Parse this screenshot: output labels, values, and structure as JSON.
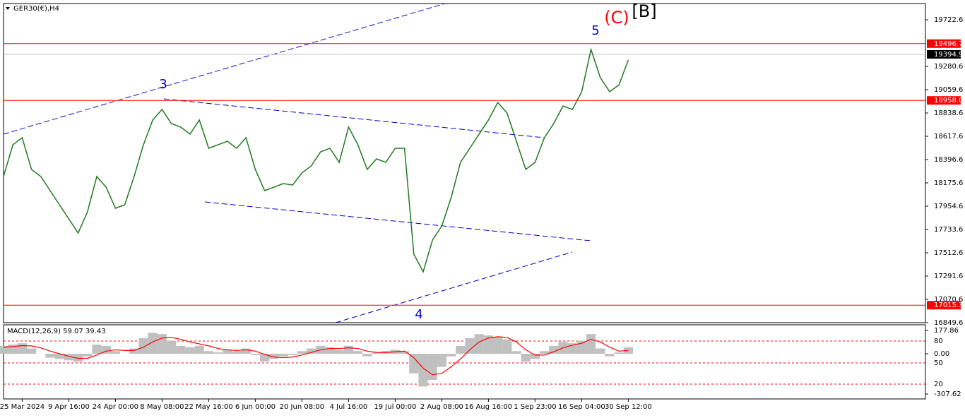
{
  "chart_data": [
    {
      "type": "line",
      "title": "GER30(€),H4",
      "color": "#1e7a1e",
      "categories": [
        null,
        null,
        "25 Mar 2024",
        null,
        null,
        null,
        null,
        "9 Apr 16:00",
        null,
        null,
        null,
        null,
        "24 Apr 00:00",
        null,
        null,
        null,
        null,
        "8 May 08:00",
        null,
        null,
        null,
        null,
        "22 May 16:00",
        null,
        null,
        null,
        null,
        "6 Jun 00:00",
        null,
        null,
        null,
        null,
        "20 Jun 08:00",
        null,
        null,
        null,
        null,
        "4 Jul 16:00",
        null,
        null,
        null,
        null,
        "19 Jul 00:00",
        null,
        null,
        null,
        null,
        "2 Aug 08:00",
        null,
        null,
        null,
        null,
        "16 Aug 16:00",
        null,
        null,
        null,
        null,
        "1 Sep 23:00",
        null,
        null,
        null,
        null,
        "16 Sep 04:00",
        null,
        null,
        null,
        null,
        "30 Sep 12:00"
      ],
      "values": [
        18236,
        18537,
        18604,
        18303,
        18236,
        18102,
        17968,
        17834,
        17700,
        17901,
        18236,
        18135,
        17935,
        17968,
        18236,
        18537,
        18772,
        18872,
        18738,
        18705,
        18638,
        18772,
        18504,
        18537,
        18571,
        18504,
        18604,
        18303,
        18102,
        18135,
        18169,
        18155,
        18270,
        18337,
        18470,
        18504,
        18370,
        18705,
        18537,
        18303,
        18403,
        18370,
        18504,
        18504,
        17499,
        17332,
        17633,
        17767,
        18035,
        18370,
        18504,
        18638,
        18772,
        18939,
        18838,
        18571,
        18303,
        18370,
        18604,
        18738,
        18905,
        18872,
        19040,
        19441,
        19173,
        19040,
        19106,
        19341
      ],
      "ylim": [
        16836,
        19877
      ],
      "yticks": [
        19722.6,
        19280.6,
        19059.6,
        18838.6,
        18617.6,
        18396.6,
        18175.6,
        17954.6,
        17733.6,
        17512.6,
        17291.6,
        17070.6,
        16849.6
      ],
      "levels": [
        19496.7,
        {
          "value": 18958,
          "label": "18958.0"
        },
        17015.3
      ],
      "level_color": "#ff0000",
      "last_price": 19394.9,
      "annotations": [
        "3",
        "4",
        "5",
        "(C)",
        "[B]"
      ]
    },
    {
      "type": "macd",
      "title": "MACD(12,26,9) 59.07 39.43",
      "color": "#c0c0c0",
      "signal_color": "#ff0000",
      "values": [
        60,
        70,
        80,
        40,
        0,
        -30,
        -40,
        -50,
        -60,
        -20,
        70,
        60,
        20,
        0,
        40,
        120,
        160,
        150,
        100,
        60,
        50,
        60,
        20,
        10,
        30,
        20,
        40,
        -10,
        -60,
        -40,
        -20,
        -10,
        20,
        40,
        60,
        50,
        30,
        60,
        20,
        -20,
        10,
        20,
        30,
        20,
        -150,
        -250,
        -200,
        -100,
        -20,
        60,
        120,
        150,
        140,
        130,
        110,
        20,
        -60,
        -40,
        20,
        60,
        90,
        80,
        100,
        150,
        40,
        -20,
        10,
        50
      ],
      "signal": [
        50,
        55,
        62,
        60,
        45,
        20,
        0,
        -20,
        -35,
        -35,
        -10,
        20,
        30,
        25,
        25,
        50,
        90,
        120,
        125,
        110,
        90,
        75,
        60,
        40,
        30,
        25,
        30,
        20,
        -5,
        -25,
        -30,
        -25,
        -10,
        10,
        30,
        40,
        40,
        45,
        40,
        20,
        10,
        10,
        15,
        20,
        -30,
        -110,
        -160,
        -150,
        -100,
        -40,
        30,
        90,
        120,
        130,
        125,
        90,
        30,
        -10,
        -10,
        15,
        45,
        65,
        80,
        110,
        90,
        50,
        20,
        25
      ],
      "ylim": [
        -345,
        221
      ],
      "yticks": [
        177.86,
        {
          "value": 0,
          "label": "0.00"
        },
        -307.62
      ],
      "level_labels": [
        "80",
        "50",
        "20"
      ]
    }
  ]
}
